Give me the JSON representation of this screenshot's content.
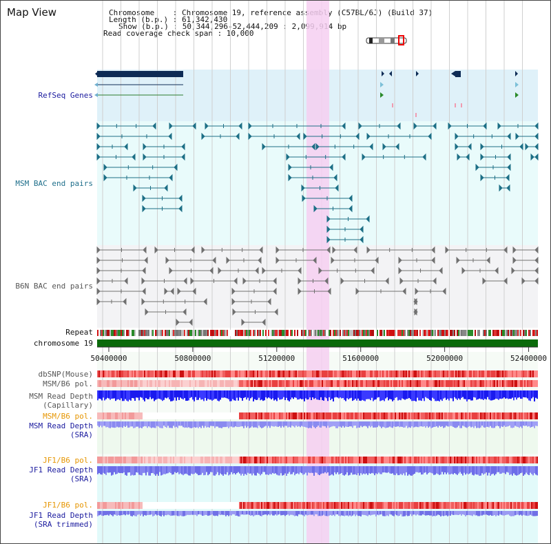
{
  "view_title": "Map View",
  "info": {
    "chromosome": "Chromosome    : Chromosome 19, reference assembly (C57BL/6J) (Build 37)",
    "length": "Length (b.p.) : 61,342,430",
    "show": "Show (b.p.) : 50,344,296-52,444,209 : 2,099,914 bp",
    "span": "Read coverage check span : 10,000"
  },
  "tracks": {
    "refseq": "RefSeq Genes",
    "msm_bac": "MSM BAC end pairs",
    "b6n_bac": "B6N BAC end pairs",
    "repeat": "Repeat",
    "chromosome": "chromosome 19",
    "dbsnp": "dbSNP(Mouse)",
    "msm_b6_pol_1": "MSM/B6 pol.",
    "msm_depth_cap_1": "MSM Read Depth",
    "msm_depth_cap_2": "(Capillary)",
    "msm_b6_pol_2": "MSM/B6 pol.",
    "msm_depth_sra_1": "MSM Read Depth",
    "msm_depth_sra_2": "(SRA)",
    "jf1_b6_pol_1": "JF1/B6 pol.",
    "jf1_depth_sra_1": "JF1 Read Depth",
    "jf1_depth_sra_2": "(SRA)",
    "jf1_b6_pol_2": "JF1/B6 pol.",
    "jf1_depth_trim_1": "JF1 Read Depth",
    "jf1_depth_trim_2": "(SRA trimmed)"
  },
  "axis_ticks": [
    "50400000",
    "50800000",
    "51200000",
    "51600000",
    "52000000",
    "52400000"
  ],
  "colors": {
    "label_blue": "#1a1a9e",
    "label_teal": "#1f6f8b",
    "label_gray": "#555555",
    "label_orange": "#e69500",
    "refseq_bg": "#dff1f9",
    "msm_bg": "#e9fbfb",
    "b6n_bg": "#f3f3f5",
    "highlight": "#f6d3f2",
    "chrom_green": "#0a6a0a",
    "teal_line": "#1d6f86",
    "gray_line": "#707070",
    "navy": "#0d2b55"
  }
}
